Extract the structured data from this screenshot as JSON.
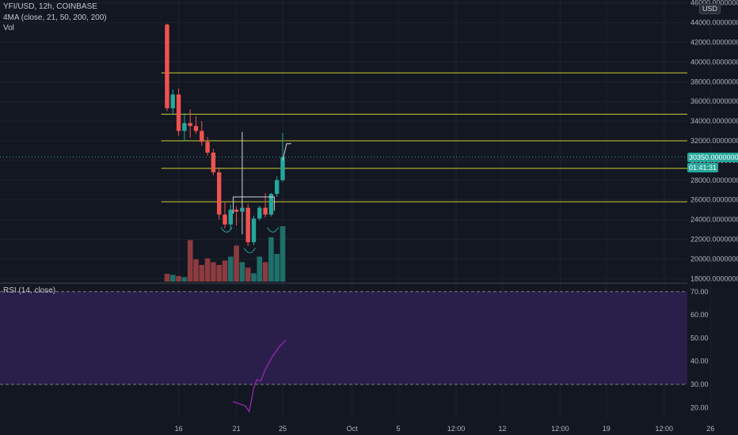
{
  "header": {
    "symbol": "YFI/USD, 12h, COINBASE",
    "ma_indicator": "4MA (close, 21, 50, 200, 200)",
    "volume_label": "Vol",
    "rsi_label": "RSI (14, close)",
    "currency": "USD"
  },
  "price_badge": {
    "price": "30350.00000000",
    "countdown": "01:41:31"
  },
  "colors": {
    "background": "#131722",
    "up": "#26a69a",
    "down": "#ef5350",
    "level_line": "#c9d130",
    "rsi_band": "#2a1f4a",
    "rsi_line": "#9c27b0",
    "axis_text": "#b2b5be",
    "grid": "#1e222d"
  },
  "chart_data": [
    {
      "type": "candlestick",
      "title": "YFI/USD, 12h, COINBASE",
      "y_ticks": [
        18000,
        20000,
        22000,
        24000,
        26000,
        28000,
        30000,
        32000,
        34000,
        36000,
        38000,
        40000,
        42000,
        44000,
        46000
      ],
      "y_tick_labels": [
        "18000.00000000",
        "20000.00000000",
        "22000.00000000",
        "24000.00000000",
        "26000.00000000",
        "28000.00000000",
        "30000.00000000",
        "32000.00000000",
        "34000.00000000",
        "36000.00000000",
        "38000.00000000",
        "40000.00000000",
        "42000.00000000",
        "44000.00000000",
        "46000.00000000"
      ],
      "ylim": [
        17700,
        46300
      ],
      "x_ticks": [
        {
          "bar": 2,
          "label": "16"
        },
        {
          "bar": 12,
          "label": "21"
        },
        {
          "bar": 20,
          "label": "25"
        },
        {
          "bar": 32,
          "label": "Oct"
        },
        {
          "bar": 40,
          "label": "5"
        },
        {
          "bar": 50,
          "label": "12:00"
        },
        {
          "bar": 58,
          "label": "12"
        },
        {
          "bar": 68,
          "label": "12:00"
        },
        {
          "bar": 76,
          "label": "19"
        },
        {
          "bar": 86,
          "label": "12:00"
        },
        {
          "bar": 94,
          "label": "26"
        }
      ],
      "candles": [
        {
          "o": 43800,
          "h": 43900,
          "l": 35000,
          "c": 35300
        },
        {
          "o": 35300,
          "h": 37200,
          "l": 34600,
          "c": 36700
        },
        {
          "o": 36700,
          "h": 37300,
          "l": 32500,
          "c": 33000
        },
        {
          "o": 33000,
          "h": 34800,
          "l": 32000,
          "c": 33800
        },
        {
          "o": 33800,
          "h": 35200,
          "l": 32300,
          "c": 33500
        },
        {
          "o": 33500,
          "h": 34500,
          "l": 32700,
          "c": 33000
        },
        {
          "o": 33000,
          "h": 34000,
          "l": 31500,
          "c": 31900
        },
        {
          "o": 31900,
          "h": 32400,
          "l": 30500,
          "c": 30800
        },
        {
          "o": 30800,
          "h": 31200,
          "l": 28500,
          "c": 28800
        },
        {
          "o": 28800,
          "h": 29300,
          "l": 24000,
          "c": 24500
        },
        {
          "o": 24500,
          "h": 25800,
          "l": 23100,
          "c": 23500
        },
        {
          "o": 23500,
          "h": 25500,
          "l": 23000,
          "c": 25000
        },
        {
          "o": 25000,
          "h": 25300,
          "l": 23400,
          "c": 24800
        },
        {
          "o": 24800,
          "h": 32900,
          "l": 22500,
          "c": 25200
        },
        {
          "o": 25200,
          "h": 25600,
          "l": 21300,
          "c": 21700
        },
        {
          "o": 21700,
          "h": 24400,
          "l": 21400,
          "c": 24100
        },
        {
          "o": 24100,
          "h": 25400,
          "l": 23900,
          "c": 25200
        },
        {
          "o": 25200,
          "h": 26700,
          "l": 24200,
          "c": 24500
        },
        {
          "o": 24500,
          "h": 26700,
          "l": 24300,
          "c": 26600
        },
        {
          "o": 26600,
          "h": 28400,
          "l": 26300,
          "c": 28000
        },
        {
          "o": 28000,
          "h": 32800,
          "l": 27800,
          "c": 30350
        }
      ],
      "volumes": [
        14,
        12,
        10,
        8,
        75,
        40,
        30,
        42,
        35,
        30,
        38,
        45,
        65,
        35,
        25,
        15,
        45,
        35,
        80,
        50,
        100
      ],
      "level_lines": [
        38900,
        34700,
        32000,
        29200,
        25800
      ],
      "grid": true
    },
    {
      "type": "line",
      "title": "RSI (14, close)",
      "y_ticks": [
        20,
        30,
        40,
        50,
        60,
        70
      ],
      "y_tick_labels": [
        "20.00",
        "30.00",
        "40.00",
        "50.00",
        "60.00",
        "70.00"
      ],
      "ylim": [
        15,
        73
      ],
      "bands": [
        70,
        30
      ],
      "series": [
        {
          "values": [
            {
              "bar": 11.4,
              "v": 22.6
            },
            {
              "bar": 12.3,
              "v": 21.8
            },
            {
              "bar": 13.5,
              "v": 20.8
            },
            {
              "bar": 14.2,
              "v": 18.3
            },
            {
              "bar": 15.0,
              "v": 28.5
            },
            {
              "bar": 15.5,
              "v": 32.0
            },
            {
              "bar": 16.2,
              "v": 31.5
            },
            {
              "bar": 17.0,
              "v": 36.5
            },
            {
              "bar": 18.2,
              "v": 42.0
            },
            {
              "bar": 19.4,
              "v": 46.2
            },
            {
              "bar": 20.5,
              "v": 49.0
            }
          ]
        }
      ]
    }
  ]
}
